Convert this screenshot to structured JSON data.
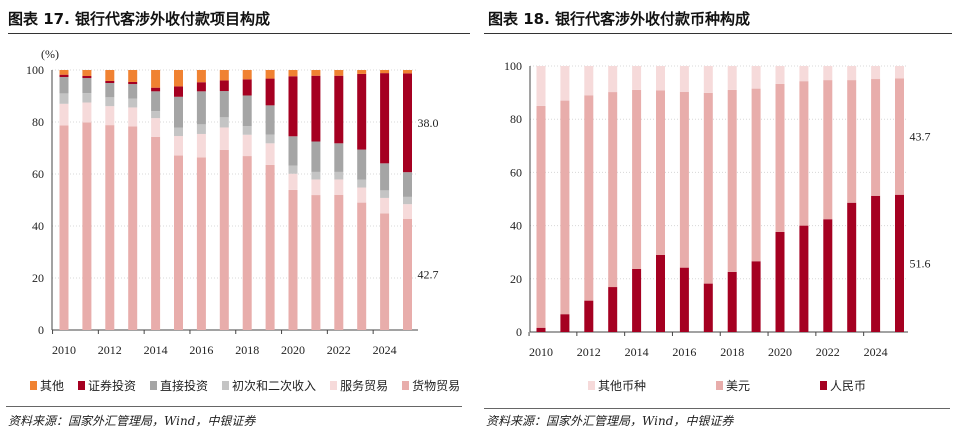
{
  "left": {
    "title": "图表 17. 银行代客涉外收付款项目构成",
    "source": "资料来源：国家外汇管理局，Wind，中银证券"
  },
  "right": {
    "title": "图表 18. 银行代客涉外收付款币种构成",
    "source": "资料来源：国家外汇管理局，Wind，中银证券"
  },
  "chart_data": [
    {
      "type": "bar",
      "stacked": true,
      "ylabel": "(%)",
      "ylim": [
        0,
        100
      ],
      "yticks": [
        "0",
        "20",
        "40",
        "60",
        "80",
        "100"
      ],
      "grid": true,
      "legend": "bottom",
      "categories": [
        "2010",
        "2011",
        "2012",
        "2013",
        "2014",
        "2015",
        "2016",
        "2017",
        "2018",
        "2019",
        "2020",
        "2021",
        "2022",
        "2023",
        "2024",
        "2025"
      ],
      "xtick_labels": [
        "2010",
        "2012",
        "2014",
        "2016",
        "2018",
        "2020",
        "2022",
        "2024"
      ],
      "series": [
        {
          "name": "货物贸易",
          "color": "#e8adab",
          "values": [
            78.7,
            79.8,
            78.8,
            78.3,
            74.3,
            67.1,
            66.4,
            69.3,
            66.9,
            63.5,
            53.9,
            51.9,
            52.0,
            49.0,
            44.8,
            42.7
          ]
        },
        {
          "name": "服务贸易",
          "color": "#f6dada",
          "values": [
            8.3,
            7.7,
            7.3,
            7.3,
            7.2,
            7.5,
            9.0,
            8.6,
            8.2,
            8.3,
            6.2,
            6.0,
            5.9,
            5.8,
            6.0,
            5.7
          ]
        },
        {
          "name": "初次和二次收入",
          "color": "#c4c4c4",
          "values": [
            4.0,
            3.6,
            3.4,
            3.4,
            2.7,
            3.2,
            3.7,
            3.9,
            3.3,
            3.4,
            3.1,
            2.9,
            2.9,
            3.0,
            2.9,
            2.8
          ]
        },
        {
          "name": "直接投资",
          "color": "#a5a5a5",
          "values": [
            6.3,
            5.8,
            5.5,
            5.6,
            7.6,
            11.9,
            12.7,
            10.1,
            11.8,
            11.2,
            11.3,
            11.7,
            11.0,
            11.6,
            10.4,
            9.5
          ]
        },
        {
          "name": "证券投资",
          "color": "#a50021",
          "values": [
            0.9,
            0.8,
            0.8,
            0.8,
            1.4,
            4.0,
            3.5,
            4.1,
            6.2,
            10.3,
            23.1,
            25.3,
            26.0,
            29.1,
            34.7,
            38.0
          ]
        },
        {
          "name": "其他",
          "color": "#f08232",
          "values": [
            1.8,
            2.3,
            4.2,
            4.6,
            6.8,
            6.3,
            4.7,
            4.0,
            3.6,
            3.3,
            2.4,
            2.2,
            2.2,
            1.5,
            1.2,
            1.3
          ]
        }
      ],
      "legend_order": [
        "其他",
        "证券投资",
        "直接投资",
        "初次和二次收入",
        "服务贸易",
        "货物贸易"
      ],
      "annotations": [
        {
          "text": "38.0",
          "series": "证券投资"
        },
        {
          "text": "42.7",
          "series": "货物贸易"
        }
      ]
    },
    {
      "type": "bar",
      "stacked": true,
      "ylim": [
        0,
        100
      ],
      "yticks": [
        "0",
        "20",
        "40",
        "60",
        "80",
        "100"
      ],
      "grid": true,
      "legend": "bottom",
      "categories": [
        "2010",
        "2011",
        "2012",
        "2013",
        "2014",
        "2015",
        "2016",
        "2017",
        "2018",
        "2019",
        "2020",
        "2021",
        "2022",
        "2023",
        "2024",
        "2025"
      ],
      "xtick_labels": [
        "2010",
        "2012",
        "2014",
        "2016",
        "2018",
        "2020",
        "2022",
        "2024"
      ],
      "series": [
        {
          "name": "人民币",
          "color": "#a50021",
          "values": [
            1.6,
            6.7,
            11.8,
            16.9,
            23.7,
            29.0,
            24.2,
            18.2,
            22.6,
            26.6,
            37.6,
            40.0,
            42.4,
            48.6,
            51.2,
            51.6
          ]
        },
        {
          "name": "美元",
          "color": "#e8adab",
          "values": [
            83.4,
            80.3,
            77.2,
            73.3,
            67.3,
            61.8,
            66.1,
            71.7,
            68.4,
            64.9,
            55.7,
            54.3,
            52.3,
            46.1,
            43.9,
            43.7
          ]
        },
        {
          "name": "其他币种",
          "color": "#f6dada",
          "values": [
            15.0,
            13.0,
            11.0,
            9.8,
            9.0,
            9.2,
            9.7,
            10.1,
            9.0,
            8.5,
            6.7,
            5.7,
            5.3,
            5.3,
            4.9,
            4.7
          ]
        }
      ],
      "legend_order": [
        "其他币种",
        "美元",
        "人民币"
      ],
      "annotations": [
        {
          "text": "43.7",
          "series": "美元"
        },
        {
          "text": "51.6",
          "series": "人民币"
        }
      ]
    }
  ]
}
